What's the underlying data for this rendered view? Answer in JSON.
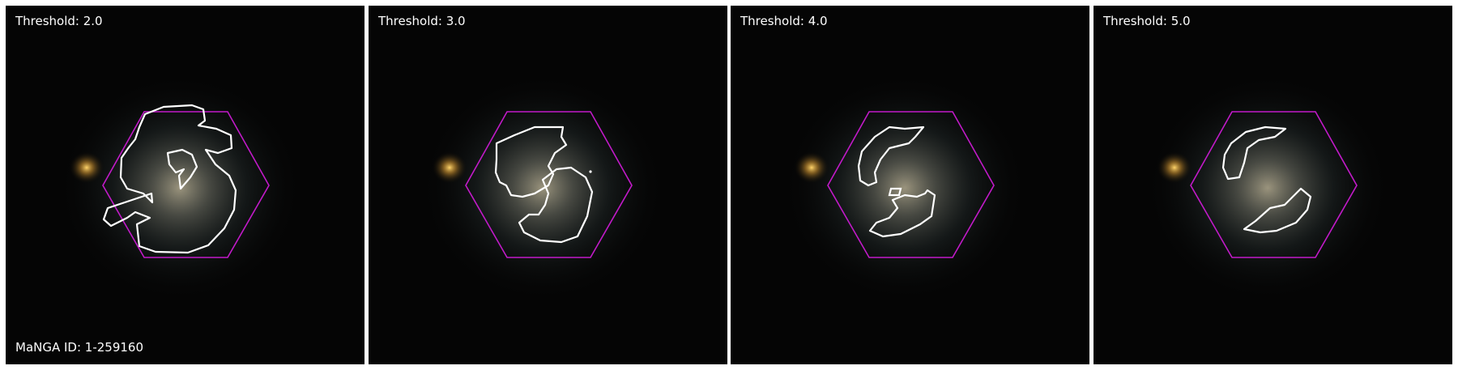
{
  "panels": [
    {
      "threshold_label": "Threshold: 2.0"
    },
    {
      "threshold_label": "Threshold: 3.0"
    },
    {
      "threshold_label": "Threshold: 4.0"
    },
    {
      "threshold_label": "Threshold: 5.0"
    }
  ],
  "manga_id_label": "MaNGA ID: 1-259160",
  "colors": {
    "hexagon": "#c21ac9",
    "contour": "#ffffff",
    "background": "#050505"
  },
  "icons": [
    "galaxy-image",
    "ifu-hexagon",
    "spiral-arm-contour"
  ]
}
